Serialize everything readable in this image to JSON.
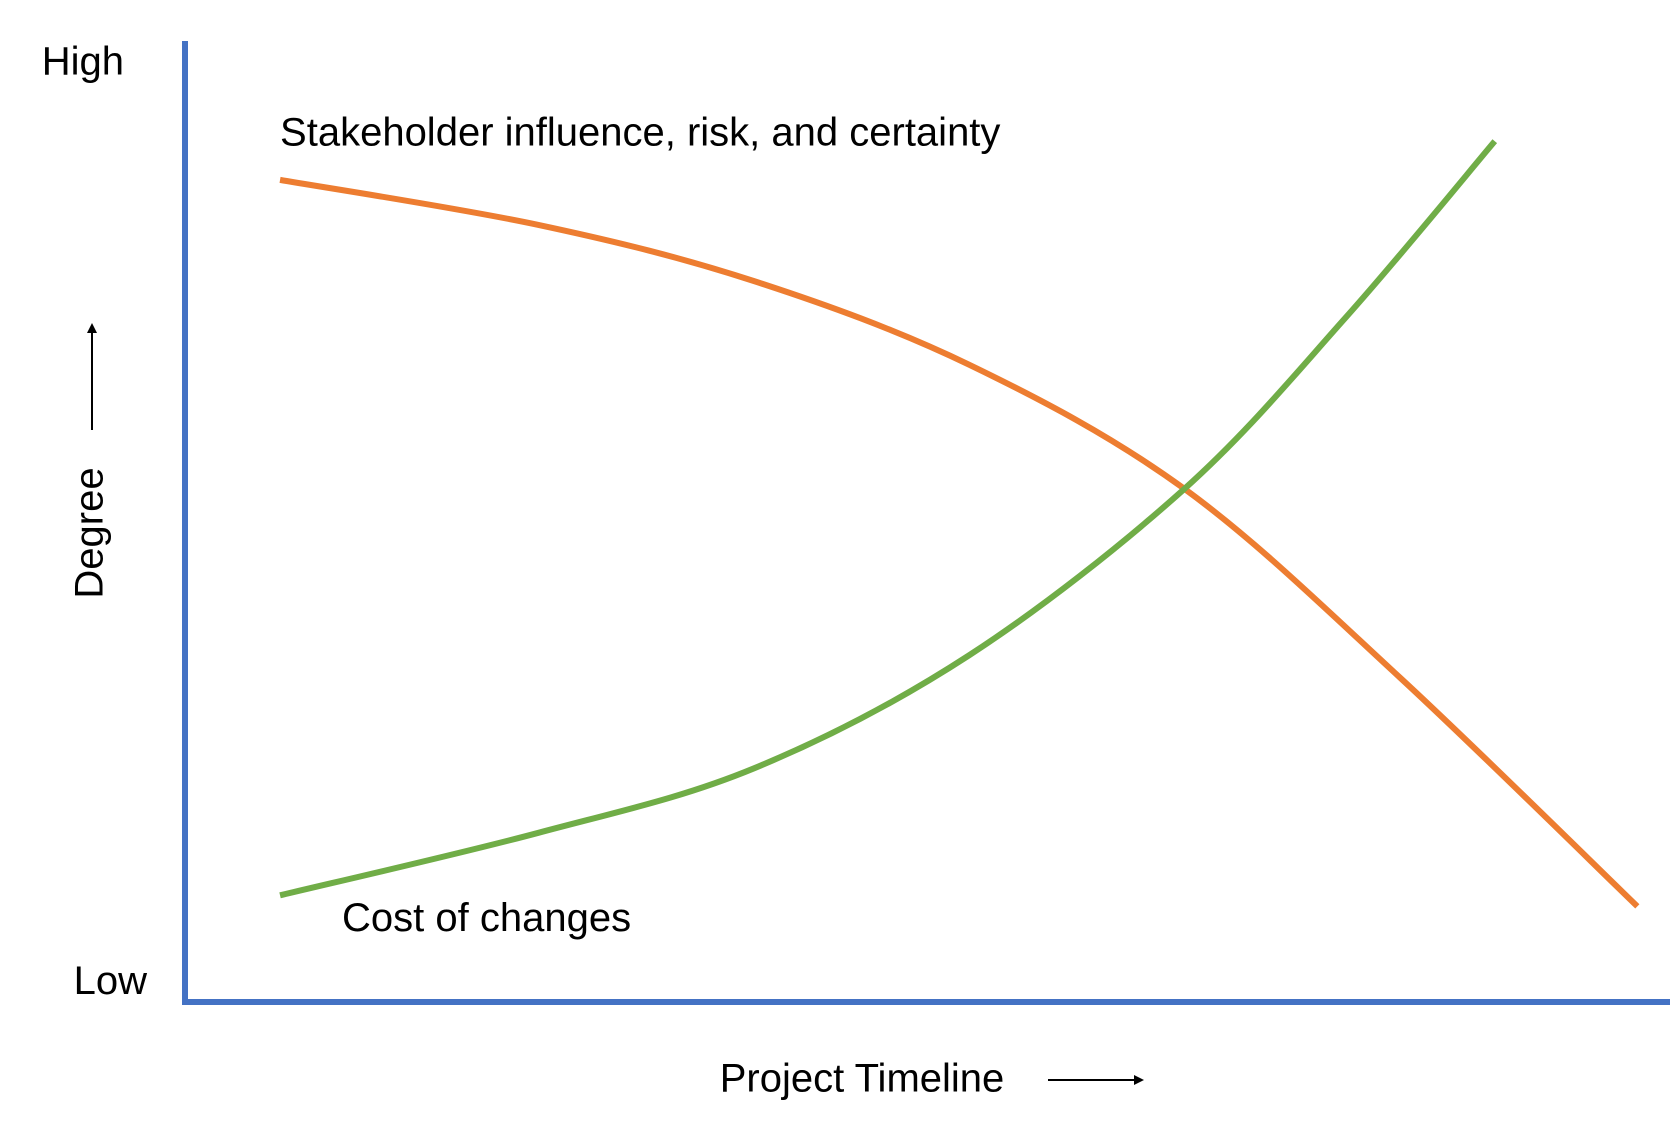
{
  "chart_data": {
    "type": "line",
    "x_label": "Project Timeline",
    "y_label": "Degree",
    "xlim": [
      0,
      100
    ],
    "ylim": [
      -2,
      102.5
    ],
    "yticks": [
      {
        "value": 100,
        "label": "High"
      },
      {
        "value": 0,
        "label": "Low"
      }
    ],
    "axis_color": "#4472c4",
    "series": [
      {
        "name": "Stakeholder influence, risk, and certainty",
        "color": "#ed7d31",
        "x": [
          6.4,
          23.8,
          38.3,
          52.8,
          67.3,
          81.8,
          97.8
        ],
        "values": [
          87.4,
          82.5,
          76.4,
          67.3,
          53.8,
          33.3,
          8.4
        ]
      },
      {
        "name": "Cost of changes",
        "color": "#70ad47",
        "x": [
          6.4,
          23.8,
          38.3,
          52.8,
          67.3,
          78.2,
          88.2
        ],
        "values": [
          9.6,
          16.4,
          23.4,
          35.7,
          53.8,
          72.5,
          91.6
        ]
      }
    ]
  }
}
